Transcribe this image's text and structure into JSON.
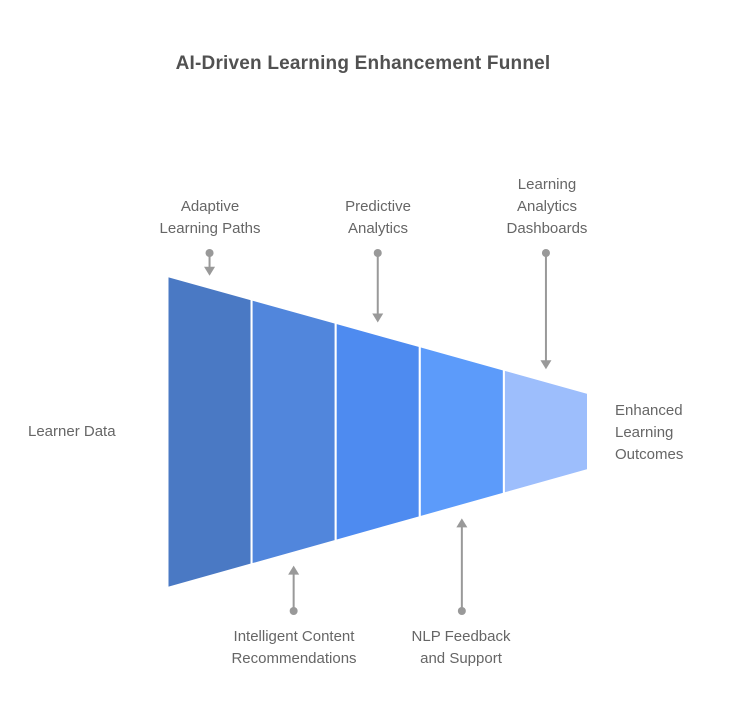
{
  "chart_data": {
    "type": "funnel",
    "orientation": "horizontal",
    "title": "AI-Driven Learning Enhancement Funnel",
    "title_color": "#515151",
    "label_color": "#666666",
    "arrow_color": "#999999",
    "stroke_color": "#ffffff",
    "background": "#ffffff",
    "input_label": "Learner Data",
    "input_label_lines": [
      "Learner Data"
    ],
    "output_label": "Enhanced Learning Outcomes",
    "output_label_lines": [
      "Enhanced",
      "Learning",
      "Outcomes"
    ],
    "stages": [
      {
        "label": "Adaptive Learning Paths",
        "label_lines": [
          "Adaptive",
          "Learning Paths"
        ],
        "color": "#4A79C4",
        "callout_side": "top"
      },
      {
        "label": "Intelligent Content Recommendations",
        "label_lines": [
          "Intelligent Content",
          "Recommendations"
        ],
        "color": "#5186DC",
        "callout_side": "bottom"
      },
      {
        "label": "Predictive Analytics",
        "label_lines": [
          "Predictive",
          "Analytics"
        ],
        "color": "#4E8BF0",
        "callout_side": "top"
      },
      {
        "label": "NLP Feedback and Support",
        "label_lines": [
          "NLP Feedback",
          "and Support"
        ],
        "color": "#5C9BFA",
        "callout_side": "bottom"
      },
      {
        "label": "Learning Analytics Dashboards",
        "label_lines": [
          "Learning",
          "Analytics",
          "Dashboards"
        ],
        "color": "#9DBEFC",
        "callout_side": "top"
      }
    ]
  }
}
